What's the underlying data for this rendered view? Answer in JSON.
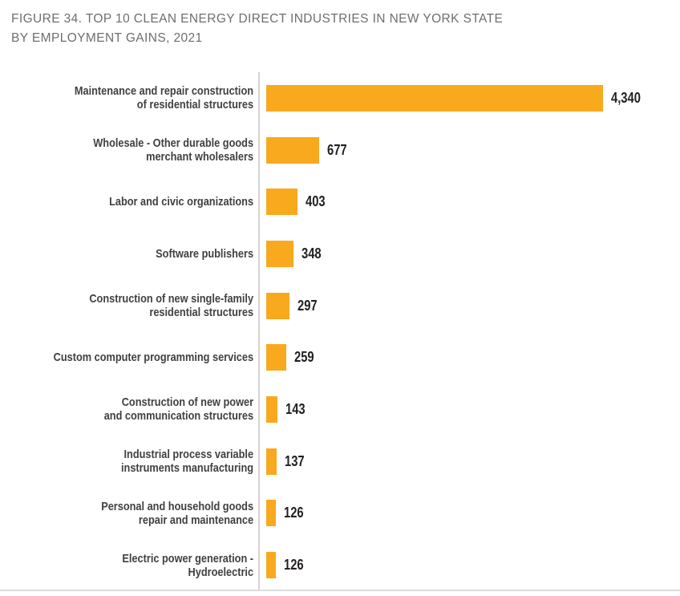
{
  "title": {
    "line1": "FIGURE 34. TOP 10 CLEAN ENERGY DIRECT INDUSTRIES IN NEW YORK STATE",
    "line2": "BY EMPLOYMENT GAINS, 2021"
  },
  "colors": {
    "bar": "#F9A91D",
    "title_text": "#6D6E71",
    "category_text": "#414042",
    "value_text": "#231F20",
    "axis_line": "#D4D4D4",
    "baseline": "#DCDCDC",
    "background": "#FFFFFF"
  },
  "chart_data": {
    "type": "bar",
    "orientation": "horizontal",
    "title": "FIGURE 34. TOP 10 CLEAN ENERGY DIRECT INDUSTRIES IN NEW YORK STATE BY EMPLOYMENT GAINS, 2021",
    "categories": [
      "Maintenance and repair construction of residential structures",
      "Wholesale - Other durable goods merchant wholesalers",
      "Labor and civic organizations",
      "Software publishers",
      "Construction of new single-family residential structures",
      "Custom computer programming services",
      "Construction of new power and communication structures",
      "Industrial process variable instruments manufacturing",
      "Personal and household goods repair and maintenance",
      "Electric power generation - Hydroelectric"
    ],
    "label_lines": [
      [
        "Maintenance and repair construction",
        "of residential structures"
      ],
      [
        "Wholesale - Other durable goods",
        "merchant wholesalers"
      ],
      [
        "Labor and civic organizations"
      ],
      [
        "Software publishers"
      ],
      [
        "Construction of new single-family",
        "residential structures"
      ],
      [
        "Custom computer programming services"
      ],
      [
        "Construction of new power",
        "and communication structures"
      ],
      [
        "Industrial process variable",
        "instruments manufacturing"
      ],
      [
        "Personal and household goods",
        "repair and maintenance"
      ],
      [
        "Electric power generation -",
        "Hydroelectric"
      ]
    ],
    "values": [
      4340,
      677,
      403,
      348,
      297,
      259,
      143,
      137,
      126,
      126
    ],
    "value_labels": [
      "4,340",
      "677",
      "403",
      "348",
      "297",
      "259",
      "143",
      "137",
      "126",
      "126"
    ],
    "xlabel": "",
    "ylabel": "",
    "xlim": [
      0,
      4340
    ],
    "grid": false,
    "legend": false
  }
}
